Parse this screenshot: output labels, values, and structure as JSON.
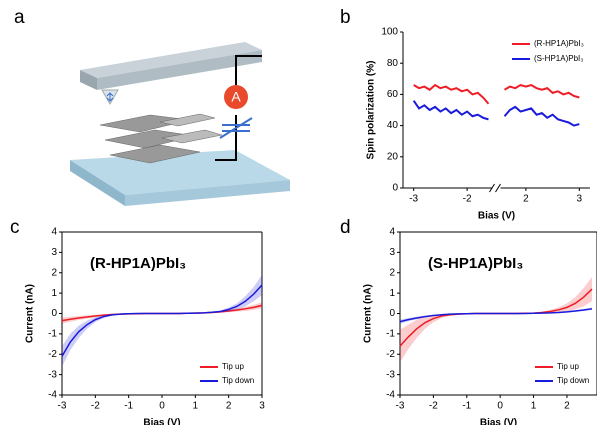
{
  "panel_labels": [
    "a",
    "b",
    "c",
    "d"
  ],
  "schematic": {
    "meter_label": "A"
  },
  "chart_data": [
    {
      "type": "line",
      "xlabel": "Bias (V)",
      "ylabel": "Spin polarization (%)",
      "x": [
        -3.0,
        -2.9,
        -2.8,
        -2.7,
        -2.6,
        -2.5,
        -2.4,
        -2.3,
        -2.2,
        -2.1,
        -2.0,
        -1.9,
        -1.8,
        -1.7,
        -1.6,
        null,
        1.6,
        1.7,
        1.8,
        1.9,
        2.0,
        2.1,
        2.2,
        2.3,
        2.4,
        2.5,
        2.6,
        2.7,
        2.8,
        2.9,
        3.0
      ],
      "series": [
        {
          "name": "(R-HP1A)PbI₃",
          "color": "#ee1c25",
          "values": [
            66,
            64,
            65,
            63,
            66,
            64,
            65,
            63,
            64,
            62,
            63,
            60,
            61,
            58,
            54,
            null,
            63,
            65,
            64,
            66,
            65,
            66,
            64,
            63,
            64,
            61,
            62,
            60,
            61,
            59,
            58
          ]
        },
        {
          "name": "(S-HP1A)PbI₃",
          "color": "#1a1adc",
          "values": [
            56,
            51,
            53,
            50,
            52,
            49,
            51,
            48,
            50,
            47,
            49,
            46,
            47,
            45,
            44,
            null,
            46,
            50,
            52,
            49,
            50,
            51,
            47,
            48,
            45,
            47,
            44,
            43,
            42,
            40,
            41
          ]
        }
      ],
      "xlim": [
        -3.2,
        3.2
      ],
      "axis_break": [
        -1.45,
        1.45
      ],
      "xticks": [
        -3,
        -2,
        2,
        3
      ],
      "ylim": [
        0,
        100
      ],
      "yticks": [
        0,
        20,
        40,
        60,
        80,
        100
      ],
      "legend": "upper right"
    },
    {
      "type": "band",
      "annotation": "(R-HP1A)PbI₃",
      "xlabel": "Bias (V)",
      "ylabel": "Current (nA)",
      "x": [
        -3,
        -2.75,
        -2.5,
        -2.25,
        -2,
        -1.75,
        -1.5,
        -1.25,
        -1,
        -0.75,
        -0.5,
        -0.25,
        0,
        0.25,
        0.5,
        0.75,
        1,
        1.25,
        1.5,
        1.75,
        2,
        2.25,
        2.5,
        2.75,
        3
      ],
      "series": [
        {
          "name": "Tip up",
          "color": "#ee1c25",
          "values": [
            -0.35,
            -0.28,
            -0.22,
            -0.17,
            -0.12,
            -0.08,
            -0.05,
            -0.03,
            -0.02,
            -0.01,
            0,
            0,
            0,
            0,
            0,
            0.01,
            0.02,
            0.03,
            0.05,
            0.08,
            0.12,
            0.17,
            0.23,
            0.3,
            0.4
          ],
          "errors": [
            0.15,
            0.12,
            0.1,
            0.08,
            0.06,
            0.04,
            0.03,
            0.02,
            0.01,
            0.01,
            0,
            0,
            0,
            0,
            0,
            0.01,
            0.01,
            0.02,
            0.03,
            0.04,
            0.06,
            0.08,
            0.1,
            0.12,
            0.15
          ]
        },
        {
          "name": "Tip down",
          "color": "#1a1adc",
          "values": [
            -2.1,
            -1.4,
            -0.9,
            -0.55,
            -0.3,
            -0.15,
            -0.07,
            -0.03,
            -0.01,
            0,
            0,
            0,
            0,
            0,
            0,
            0.01,
            0.02,
            0.03,
            0.06,
            0.1,
            0.2,
            0.35,
            0.6,
            0.95,
            1.4
          ],
          "errors": [
            0.5,
            0.4,
            0.3,
            0.2,
            0.12,
            0.07,
            0.04,
            0.02,
            0.01,
            0,
            0,
            0,
            0,
            0,
            0,
            0,
            0.01,
            0.02,
            0.03,
            0.05,
            0.1,
            0.15,
            0.25,
            0.35,
            0.5
          ]
        }
      ],
      "xlim": [
        -3,
        3
      ],
      "xticks": [
        -3,
        -2,
        -1,
        0,
        1,
        2,
        3
      ],
      "ylim": [
        -4,
        4
      ],
      "yticks": [
        -4,
        -3,
        -2,
        -1,
        0,
        1,
        2,
        3,
        4
      ],
      "legend": "lower right"
    },
    {
      "type": "band",
      "annotation": "(S-HP1A)PbI₃",
      "xlabel": "Bias (V)",
      "ylabel": "Current (nA)",
      "x": [
        -3,
        -2.75,
        -2.5,
        -2.25,
        -2,
        -1.75,
        -1.5,
        -1.25,
        -1,
        -0.75,
        -0.5,
        -0.25,
        0,
        0.25,
        0.5,
        0.75,
        1,
        1.25,
        1.5,
        1.75,
        2,
        2.25,
        2.5,
        2.75
      ],
      "series": [
        {
          "name": "Tip up",
          "color": "#ee1c25",
          "values": [
            -1.6,
            -1.15,
            -0.75,
            -0.45,
            -0.25,
            -0.12,
            -0.06,
            -0.03,
            -0.01,
            0,
            0,
            0,
            0,
            0,
            0,
            0.01,
            0.02,
            0.05,
            0.1,
            0.18,
            0.3,
            0.5,
            0.8,
            1.2
          ],
          "errors": [
            0.8,
            0.6,
            0.45,
            0.3,
            0.18,
            0.1,
            0.05,
            0.03,
            0.02,
            0.01,
            0,
            0,
            0,
            0,
            0,
            0.01,
            0.02,
            0.04,
            0.08,
            0.12,
            0.2,
            0.3,
            0.45,
            0.6
          ]
        },
        {
          "name": "Tip down",
          "color": "#1a1adc",
          "values": [
            -0.4,
            -0.3,
            -0.22,
            -0.15,
            -0.1,
            -0.06,
            -0.03,
            -0.02,
            -0.01,
            0,
            0,
            0,
            0,
            0,
            0,
            0,
            0.01,
            0.02,
            0.03,
            0.05,
            0.08,
            0.12,
            0.17,
            0.23
          ],
          "errors": [
            0.1,
            0.08,
            0.06,
            0.05,
            0.03,
            0.02,
            0.01,
            0.01,
            0,
            0,
            0,
            0,
            0,
            0,
            0,
            0,
            0,
            0.01,
            0.01,
            0.02,
            0.03,
            0.04,
            0.05,
            0.06
          ]
        }
      ],
      "xlim": [
        -3,
        2.9
      ],
      "xticks": [
        -3,
        -2,
        -1,
        0,
        1,
        2
      ],
      "ylim": [
        -4,
        4
      ],
      "yticks": [
        -4,
        -3,
        -2,
        -1,
        0,
        1,
        2,
        3,
        4
      ],
      "legend": "lower right"
    }
  ]
}
